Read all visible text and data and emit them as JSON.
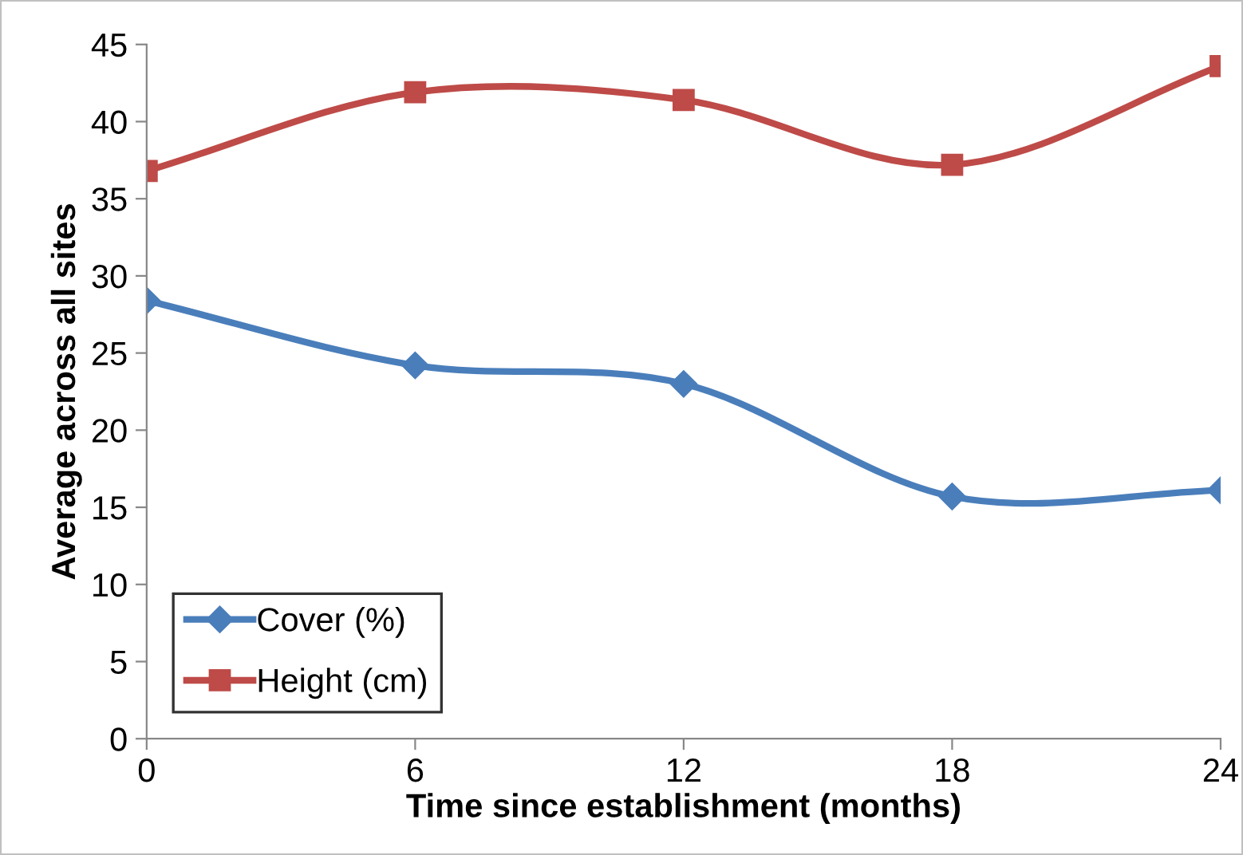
{
  "chart_data": {
    "type": "line",
    "xlabel": "Time since establishment (months)",
    "ylabel": "Average across all sites",
    "x": [
      0,
      6,
      12,
      18,
      24
    ],
    "series": [
      {
        "name": "Cover (%)",
        "color": "#4a7ebb",
        "marker": "diamond",
        "values": [
          28.4,
          24.2,
          23.0,
          15.7,
          16.1
        ]
      },
      {
        "name": "Height (cm)",
        "color": "#be4b48",
        "marker": "square",
        "values": [
          36.8,
          41.9,
          41.4,
          37.2,
          43.6
        ]
      }
    ],
    "xlim": [
      0,
      24
    ],
    "xticks": [
      0,
      6,
      12,
      18,
      24
    ],
    "ylim": [
      0,
      45
    ],
    "yticks": [
      0,
      5,
      10,
      15,
      20,
      25,
      30,
      35,
      40,
      45
    ],
    "grid": false,
    "legend": "bottom left",
    "line_style": "solid"
  }
}
